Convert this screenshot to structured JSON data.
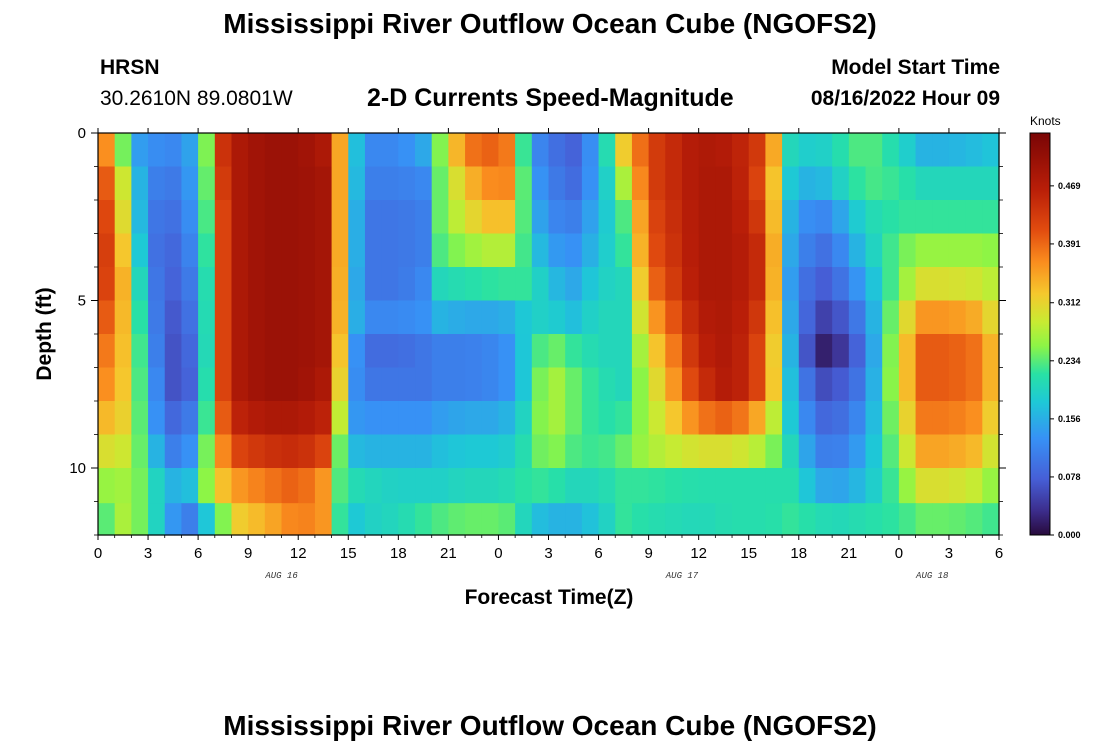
{
  "header": {
    "title": "Mississippi River Outflow Ocean Cube (NGOFS2)",
    "station_name": "HRSN",
    "station_coords": "30.2610N  89.0801W",
    "subtitle": "2-D Currents Speed-Magnitude",
    "model_start_label": "Model Start Time",
    "model_start_value": "08/16/2022 Hour 09"
  },
  "footer": {
    "title": "Mississippi River Outflow Ocean Cube (NGOFS2)"
  },
  "chart_data": {
    "type": "heatmap",
    "title": "2-D Currents Speed-Magnitude",
    "xlabel": "Forecast Time(Z)",
    "ylabel": "Depth (ft)",
    "x_range_hours": [
      0,
      54
    ],
    "y_range_ft": [
      0,
      12
    ],
    "x_ticks": [
      "0",
      "3",
      "6",
      "9",
      "12",
      "15",
      "18",
      "21",
      "0",
      "3",
      "6",
      "9",
      "12",
      "15",
      "18",
      "21",
      "0",
      "3",
      "6"
    ],
    "day_labels": [
      {
        "label": "AUG 16",
        "hour": 11
      },
      {
        "label": "AUG 17",
        "hour": 35
      },
      {
        "label": "AUG 18",
        "hour": 50
      }
    ],
    "y_ticks": [
      "0",
      "5",
      "10"
    ],
    "y_tick_values": [
      0,
      5,
      10
    ],
    "colorbar": {
      "unit": "Knots",
      "range": [
        0,
        0.54
      ],
      "ticks": [
        "0.000",
        "0.078",
        "0.156",
        "0.234",
        "0.312",
        "0.391",
        "0.469"
      ],
      "tick_values": [
        0,
        0.078,
        0.156,
        0.234,
        0.312,
        0.391,
        0.469
      ]
    },
    "depth_levels_ft": [
      0.5,
      1.5,
      2.5,
      3.5,
      4.5,
      5.5,
      6.5,
      7.5,
      8.5,
      9.5,
      10.5,
      11.6
    ],
    "time_keypoints_hours": [
      0,
      1,
      2,
      3,
      4,
      5,
      6,
      6.7,
      7.5,
      8.5,
      10,
      12,
      13.5,
      14.3,
      15,
      16,
      18,
      19.5,
      20.5,
      22,
      24,
      25,
      25.8,
      27,
      28.5,
      30,
      31.5,
      33,
      36,
      38,
      40,
      41.5,
      43,
      44,
      46,
      48,
      49.5,
      51,
      53,
      54
    ],
    "speed_knots_by_depth": [
      [
        0.39,
        0.34,
        0.15,
        0.13,
        0.12,
        0.12,
        0.17,
        0.28,
        0.44,
        0.48,
        0.5,
        0.5,
        0.48,
        0.4,
        0.22,
        0.12,
        0.12,
        0.15,
        0.25,
        0.38,
        0.4,
        0.36,
        0.14,
        0.1,
        0.08,
        0.15,
        0.32,
        0.42,
        0.48,
        0.47,
        0.42,
        0.2,
        0.18,
        0.2,
        0.24,
        0.2,
        0.16,
        0.16,
        0.17,
        0.18
      ],
      [
        0.42,
        0.38,
        0.2,
        0.12,
        0.1,
        0.11,
        0.16,
        0.27,
        0.43,
        0.48,
        0.5,
        0.5,
        0.49,
        0.4,
        0.22,
        0.11,
        0.11,
        0.12,
        0.24,
        0.33,
        0.38,
        0.36,
        0.16,
        0.11,
        0.09,
        0.15,
        0.27,
        0.42,
        0.48,
        0.48,
        0.4,
        0.18,
        0.15,
        0.18,
        0.23,
        0.22,
        0.2,
        0.2,
        0.2,
        0.2
      ],
      [
        0.44,
        0.39,
        0.22,
        0.11,
        0.09,
        0.1,
        0.15,
        0.26,
        0.42,
        0.48,
        0.5,
        0.5,
        0.49,
        0.4,
        0.21,
        0.1,
        0.1,
        0.11,
        0.24,
        0.3,
        0.34,
        0.32,
        0.18,
        0.12,
        0.11,
        0.16,
        0.23,
        0.41,
        0.48,
        0.48,
        0.42,
        0.16,
        0.11,
        0.13,
        0.2,
        0.22,
        0.22,
        0.22,
        0.22,
        0.22
      ],
      [
        0.45,
        0.4,
        0.25,
        0.11,
        0.08,
        0.09,
        0.14,
        0.25,
        0.42,
        0.48,
        0.5,
        0.5,
        0.49,
        0.4,
        0.21,
        0.1,
        0.1,
        0.11,
        0.23,
        0.26,
        0.28,
        0.27,
        0.2,
        0.14,
        0.13,
        0.17,
        0.22,
        0.4,
        0.48,
        0.48,
        0.44,
        0.15,
        0.09,
        0.1,
        0.18,
        0.24,
        0.26,
        0.26,
        0.26,
        0.25
      ],
      [
        0.44,
        0.4,
        0.28,
        0.12,
        0.08,
        0.08,
        0.13,
        0.24,
        0.42,
        0.48,
        0.5,
        0.5,
        0.49,
        0.4,
        0.2,
        0.1,
        0.1,
        0.12,
        0.2,
        0.21,
        0.22,
        0.22,
        0.22,
        0.17,
        0.15,
        0.19,
        0.2,
        0.38,
        0.48,
        0.48,
        0.44,
        0.14,
        0.07,
        0.08,
        0.15,
        0.25,
        0.3,
        0.3,
        0.29,
        0.27
      ],
      [
        0.42,
        0.38,
        0.29,
        0.14,
        0.07,
        0.07,
        0.12,
        0.24,
        0.42,
        0.48,
        0.5,
        0.5,
        0.49,
        0.4,
        0.19,
        0.12,
        0.12,
        0.13,
        0.16,
        0.15,
        0.15,
        0.16,
        0.19,
        0.19,
        0.17,
        0.2,
        0.2,
        0.34,
        0.47,
        0.48,
        0.42,
        0.15,
        0.05,
        0.05,
        0.12,
        0.28,
        0.36,
        0.36,
        0.34,
        0.28
      ],
      [
        0.4,
        0.36,
        0.3,
        0.15,
        0.07,
        0.06,
        0.11,
        0.24,
        0.42,
        0.48,
        0.5,
        0.5,
        0.49,
        0.39,
        0.17,
        0.09,
        0.09,
        0.1,
        0.11,
        0.11,
        0.12,
        0.14,
        0.2,
        0.25,
        0.22,
        0.2,
        0.2,
        0.3,
        0.46,
        0.48,
        0.4,
        0.16,
        0.02,
        0.02,
        0.1,
        0.3,
        0.4,
        0.4,
        0.38,
        0.3
      ],
      [
        0.38,
        0.35,
        0.3,
        0.16,
        0.08,
        0.05,
        0.11,
        0.25,
        0.42,
        0.48,
        0.5,
        0.5,
        0.48,
        0.38,
        0.15,
        0.1,
        0.1,
        0.1,
        0.11,
        0.11,
        0.12,
        0.14,
        0.2,
        0.28,
        0.24,
        0.21,
        0.2,
        0.28,
        0.44,
        0.48,
        0.4,
        0.17,
        0.06,
        0.06,
        0.11,
        0.3,
        0.4,
        0.4,
        0.38,
        0.3
      ],
      [
        0.34,
        0.33,
        0.3,
        0.17,
        0.09,
        0.08,
        0.13,
        0.26,
        0.4,
        0.46,
        0.48,
        0.48,
        0.46,
        0.34,
        0.14,
        0.13,
        0.13,
        0.13,
        0.14,
        0.15,
        0.15,
        0.17,
        0.21,
        0.28,
        0.24,
        0.21,
        0.22,
        0.27,
        0.38,
        0.4,
        0.33,
        0.18,
        0.09,
        0.08,
        0.13,
        0.28,
        0.38,
        0.38,
        0.36,
        0.28
      ],
      [
        0.3,
        0.3,
        0.28,
        0.2,
        0.12,
        0.1,
        0.16,
        0.28,
        0.37,
        0.42,
        0.44,
        0.45,
        0.42,
        0.27,
        0.17,
        0.16,
        0.16,
        0.16,
        0.17,
        0.18,
        0.18,
        0.19,
        0.22,
        0.26,
        0.23,
        0.22,
        0.24,
        0.27,
        0.3,
        0.3,
        0.27,
        0.2,
        0.12,
        0.1,
        0.15,
        0.26,
        0.35,
        0.35,
        0.33,
        0.26
      ],
      [
        0.26,
        0.26,
        0.27,
        0.22,
        0.17,
        0.15,
        0.19,
        0.28,
        0.33,
        0.36,
        0.38,
        0.4,
        0.36,
        0.24,
        0.21,
        0.2,
        0.19,
        0.19,
        0.19,
        0.2,
        0.2,
        0.21,
        0.22,
        0.22,
        0.2,
        0.2,
        0.22,
        0.22,
        0.21,
        0.21,
        0.21,
        0.21,
        0.16,
        0.14,
        0.17,
        0.24,
        0.3,
        0.3,
        0.28,
        0.24
      ],
      [
        0.2,
        0.27,
        0.27,
        0.22,
        0.17,
        0.1,
        0.12,
        0.2,
        0.25,
        0.32,
        0.34,
        0.38,
        0.36,
        0.24,
        0.17,
        0.19,
        0.2,
        0.22,
        0.23,
        0.24,
        0.24,
        0.23,
        0.18,
        0.16,
        0.16,
        0.18,
        0.22,
        0.21,
        0.2,
        0.21,
        0.21,
        0.22,
        0.21,
        0.2,
        0.21,
        0.22,
        0.24,
        0.24,
        0.23,
        0.22
      ]
    ],
    "data_label_markers": []
  }
}
